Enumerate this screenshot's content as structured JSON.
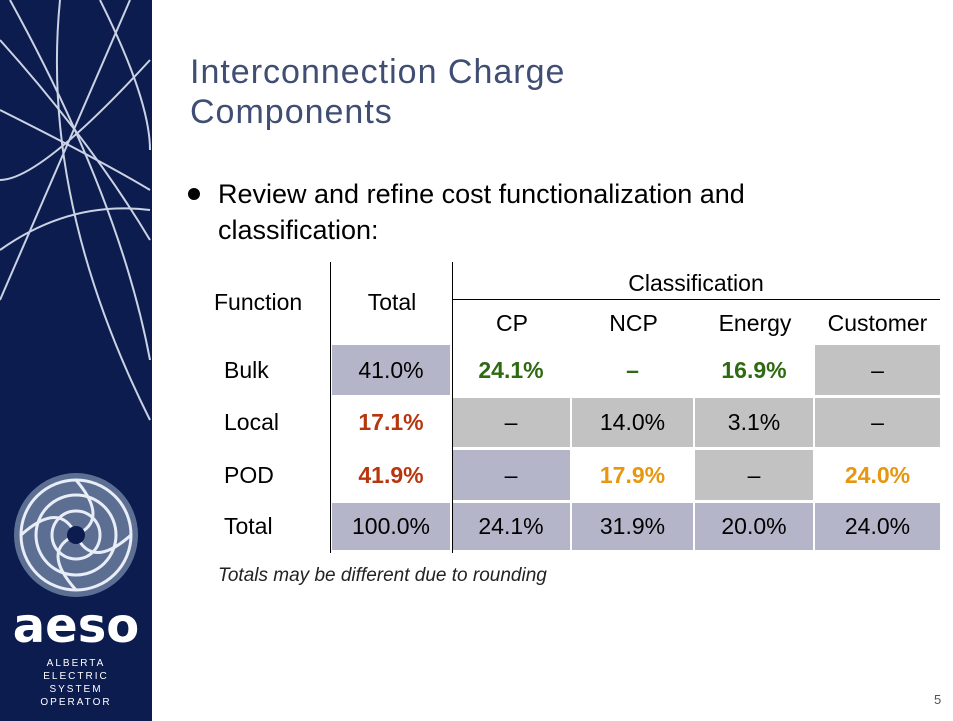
{
  "logo": {
    "name": "aeso",
    "tagline": [
      "ALBERTA",
      "ELECTRIC",
      "SYSTEM",
      "OPERATOR"
    ]
  },
  "title": [
    "Interconnection Charge",
    "Components"
  ],
  "bullet": [
    "Review and refine cost functionalization and",
    "classification:"
  ],
  "table": {
    "header": {
      "function": "Function",
      "total": "Total",
      "group": "Classification",
      "columns": [
        "CP",
        "NCP",
        "Energy",
        "Customer"
      ]
    },
    "rows": [
      [
        "Bulk",
        "41.0%",
        "24.1%",
        "–",
        "16.9%",
        "–"
      ],
      [
        "Local",
        "17.1%",
        "–",
        "14.0%",
        "3.1%",
        "–"
      ],
      [
        "POD",
        "41.9%",
        "–",
        "17.9%",
        "–",
        "24.0%"
      ],
      [
        "Total",
        "100.0%",
        "24.1%",
        "31.9%",
        "20.0%",
        "24.0%"
      ]
    ]
  },
  "note": "Totals may be different due to rounding",
  "page_number": "5"
}
